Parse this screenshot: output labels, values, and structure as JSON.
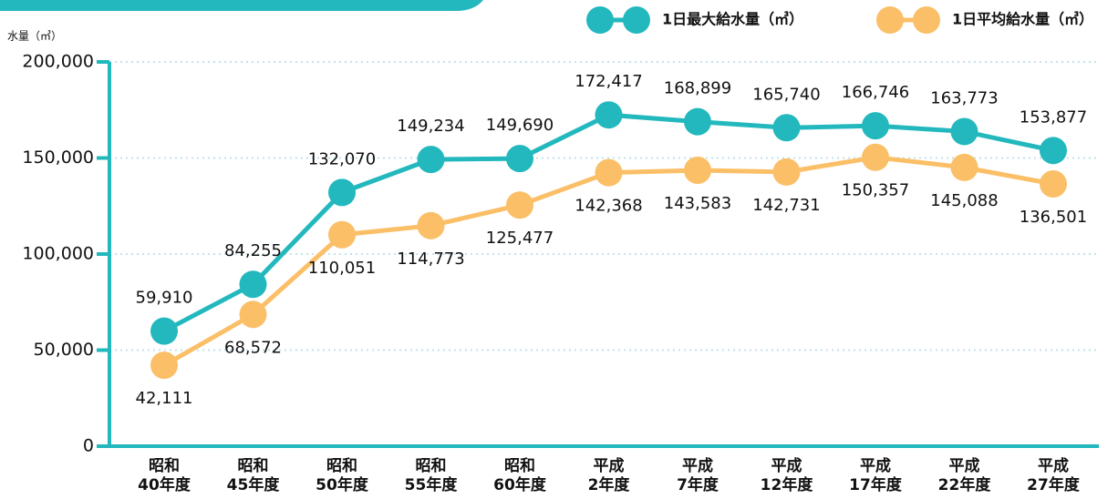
{
  "chart_data": {
    "type": "line",
    "y_axis_label": "水量（㎥）",
    "categories": [
      "昭和\n40年度",
      "昭和\n45年度",
      "昭和\n50年度",
      "昭和\n55年度",
      "昭和\n60年度",
      "平成\n2年度",
      "平成\n7年度",
      "平成\n12年度",
      "平成\n17年度",
      "平成\n22年度",
      "平成\n27年度"
    ],
    "series": [
      {
        "name": "1日最大給水量（㎥）",
        "color": "#22b8bd",
        "values": [
          59910,
          84255,
          132070,
          149234,
          149690,
          172417,
          168899,
          165740,
          166746,
          163773,
          153877
        ],
        "value_labels": [
          "59,910",
          "84,255",
          "132,070",
          "149,234",
          "149,690",
          "172,417",
          "168,899",
          "165,740",
          "166,746",
          "163,773",
          "153,877"
        ]
      },
      {
        "name": "1日平均給水量（㎥）",
        "color": "#fbbf67",
        "values": [
          42111,
          68572,
          110051,
          114773,
          125477,
          142368,
          143583,
          142731,
          150357,
          145088,
          136501
        ],
        "value_labels": [
          "42,111",
          "68,572",
          "110,051",
          "114,773",
          "125,477",
          "142,368",
          "143,583",
          "142,731",
          "150,357",
          "145,088",
          "136,501"
        ]
      }
    ],
    "ylim": [
      0,
      200000
    ],
    "yticks": [
      0,
      {
        "value": 50000,
        "label": "50,000"
      },
      {
        "value": 100000,
        "label": "100,000"
      },
      {
        "value": 150000,
        "label": "150,000"
      },
      {
        "value": 200000,
        "label": "200,000"
      }
    ],
    "grid": true
  }
}
